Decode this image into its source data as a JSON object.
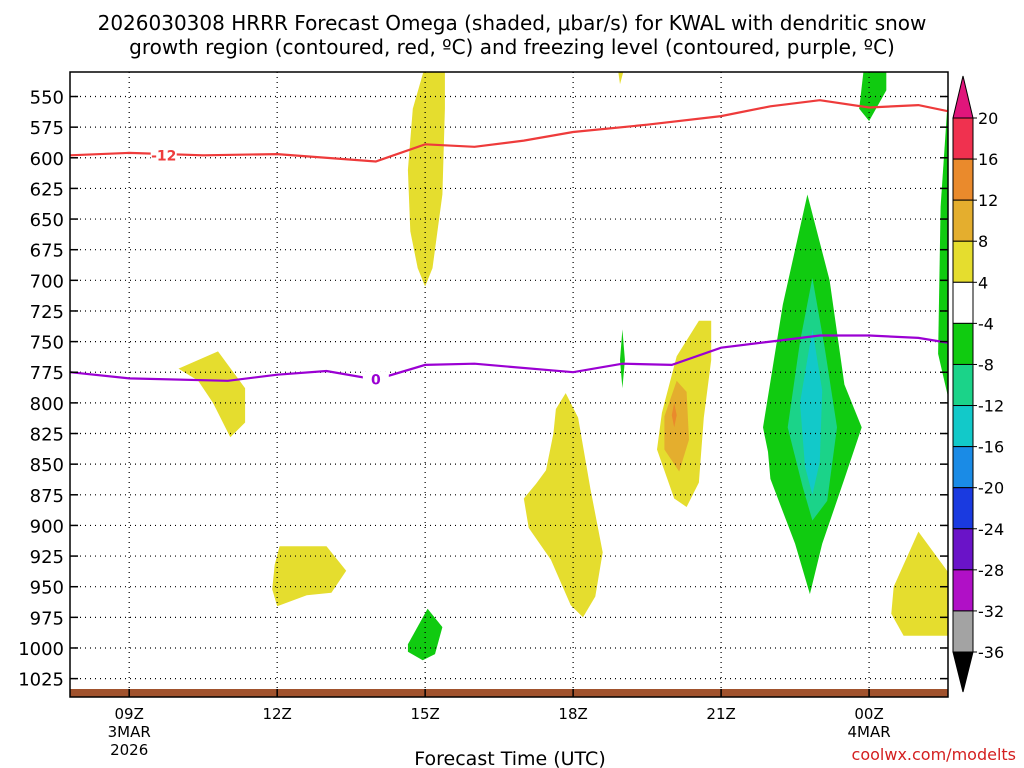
{
  "title_line1": "2026030308 HRRR Forecast Omega (shaded, μbar/s) for KWAL with dendritic snow",
  "title_line2": "growth region (contoured, red, ºC) and freezing level (contoured, purple, ºC)",
  "xlabel": "Forecast Time (UTC)",
  "credit": "coolwx.com/modelts",
  "colors": {
    "background": "#ffffff",
    "ground": "#a0522d",
    "red_contour": "#ee3b3b",
    "purple_contour": "#9b00d3",
    "grid": "#000000"
  },
  "chart_data": {
    "type": "time-height contour",
    "x_axis": {
      "units": "hours since 03MAR2026 09Z",
      "range": [
        -1.2,
        16.6
      ],
      "ticks": [
        {
          "hour": 0,
          "label": "09Z",
          "sub1": "3MAR",
          "sub2": "2026"
        },
        {
          "hour": 3,
          "label": "12Z",
          "sub1": "",
          "sub2": ""
        },
        {
          "hour": 6,
          "label": "15Z",
          "sub1": "",
          "sub2": ""
        },
        {
          "hour": 9,
          "label": "18Z",
          "sub1": "",
          "sub2": ""
        },
        {
          "hour": 12,
          "label": "21Z",
          "sub1": "",
          "sub2": ""
        },
        {
          "hour": 15,
          "label": "00Z",
          "sub1": "4MAR",
          "sub2": ""
        }
      ]
    },
    "y_axis": {
      "units": "hPa",
      "range": [
        530,
        1040
      ],
      "ticks": [
        550,
        575,
        600,
        625,
        650,
        675,
        700,
        725,
        750,
        775,
        800,
        825,
        850,
        875,
        900,
        925,
        950,
        975,
        1000,
        1025
      ]
    },
    "colorbar": {
      "title": "Omega (μbar/s)",
      "ticks": [
        20,
        16,
        12,
        8,
        4,
        -4,
        -8,
        -12,
        -16,
        -20,
        -24,
        -28,
        -32,
        -36
      ],
      "bins": [
        {
          "lo": 16,
          "hi": 20,
          "color": "#f0314f"
        },
        {
          "lo": 12,
          "hi": 16,
          "color": "#ea8a2c"
        },
        {
          "lo": 8,
          "hi": 12,
          "color": "#e4ae2e"
        },
        {
          "lo": 4,
          "hi": 8,
          "color": "#e5dd2e"
        },
        {
          "lo": -4,
          "hi": 4,
          "color": "#ffffff"
        },
        {
          "lo": -8,
          "hi": -4,
          "color": "#10cb10"
        },
        {
          "lo": -12,
          "hi": -8,
          "color": "#1bd389"
        },
        {
          "lo": -16,
          "hi": -12,
          "color": "#12c9c9"
        },
        {
          "lo": -20,
          "hi": -16,
          "color": "#1a8be6"
        },
        {
          "lo": -24,
          "hi": -20,
          "color": "#1a3ae0"
        },
        {
          "lo": -28,
          "hi": -24,
          "color": "#6a13c8"
        },
        {
          "lo": -32,
          "hi": -28,
          "color": "#b010c6"
        },
        {
          "lo": -36,
          "hi": -32,
          "color": "#a3a3a3"
        }
      ],
      "top_cap_color": "#e0157b",
      "bottom_cap_color": "#000000"
    },
    "red_contour": {
      "label": "-12",
      "label_point": [
        0.7,
        598
      ],
      "points": [
        [
          -1.2,
          598
        ],
        [
          0.0,
          596
        ],
        [
          1.5,
          598
        ],
        [
          3.0,
          597
        ],
        [
          5.0,
          603
        ],
        [
          6.0,
          589
        ],
        [
          7.0,
          591
        ],
        [
          8.0,
          586
        ],
        [
          9.0,
          579
        ],
        [
          10.5,
          573
        ],
        [
          12.0,
          566
        ],
        [
          13.0,
          558
        ],
        [
          14.0,
          553
        ],
        [
          15.0,
          559
        ],
        [
          16.0,
          557
        ],
        [
          16.6,
          562
        ]
      ]
    },
    "purple_contour": {
      "label": "0",
      "label_point": [
        5.0,
        781
      ],
      "points": [
        [
          -1.2,
          775
        ],
        [
          0.0,
          780
        ],
        [
          2.0,
          782
        ],
        [
          3.0,
          777
        ],
        [
          4.0,
          774
        ],
        [
          5.0,
          781
        ],
        [
          6.0,
          769
        ],
        [
          7.0,
          768
        ],
        [
          9.0,
          775
        ],
        [
          10.0,
          768
        ],
        [
          11.0,
          769
        ],
        [
          12.0,
          755
        ],
        [
          13.0,
          750
        ],
        [
          14.0,
          745
        ],
        [
          15.0,
          745
        ],
        [
          16.0,
          747
        ],
        [
          16.6,
          751
        ]
      ]
    },
    "omega_regions": [
      {
        "value": 4,
        "points": [
          [
            6.0,
            525
          ],
          [
            5.75,
            560
          ],
          [
            5.65,
            610
          ],
          [
            5.7,
            660
          ],
          [
            5.85,
            690
          ],
          [
            6.0,
            705
          ],
          [
            6.15,
            690
          ],
          [
            6.35,
            630
          ],
          [
            6.4,
            560
          ],
          [
            6.4,
            525
          ]
        ]
      },
      {
        "value": 4,
        "points": [
          [
            9.9,
            525
          ],
          [
            9.95,
            540
          ],
          [
            10.05,
            525
          ]
        ]
      },
      {
        "value": 4,
        "points": [
          [
            1.0,
            772
          ],
          [
            1.8,
            758
          ],
          [
            2.35,
            788
          ],
          [
            2.35,
            816
          ],
          [
            2.05,
            828
          ],
          [
            1.7,
            800
          ],
          [
            1.4,
            782
          ]
        ]
      },
      {
        "value": 4,
        "points": [
          [
            2.95,
            932
          ],
          [
            3.05,
            917
          ],
          [
            4.0,
            917
          ],
          [
            4.4,
            937
          ],
          [
            4.1,
            955
          ],
          [
            3.6,
            957
          ],
          [
            3.0,
            966
          ],
          [
            2.9,
            952
          ]
        ]
      },
      {
        "value": 4,
        "points": [
          [
            8.45,
            855
          ],
          [
            8.6,
            825
          ],
          [
            8.65,
            805
          ],
          [
            8.85,
            792
          ],
          [
            9.1,
            812
          ],
          [
            9.35,
            870
          ],
          [
            9.6,
            922
          ],
          [
            9.45,
            958
          ],
          [
            9.2,
            975
          ],
          [
            8.95,
            965
          ],
          [
            8.55,
            928
          ],
          [
            8.1,
            902
          ],
          [
            8.0,
            878
          ],
          [
            8.25,
            866
          ]
        ]
      },
      {
        "value": 4,
        "points": [
          [
            10.8,
            808
          ],
          [
            11.1,
            762
          ],
          [
            11.55,
            733
          ],
          [
            11.8,
            733
          ],
          [
            11.8,
            765
          ],
          [
            11.65,
            812
          ],
          [
            11.55,
            865
          ],
          [
            11.3,
            885
          ],
          [
            11.05,
            878
          ],
          [
            10.7,
            838
          ]
        ]
      },
      {
        "value": 8,
        "points": [
          [
            10.85,
            811
          ],
          [
            11.1,
            782
          ],
          [
            11.3,
            791
          ],
          [
            11.35,
            830
          ],
          [
            11.15,
            856
          ],
          [
            10.85,
            838
          ]
        ]
      },
      {
        "value": 12,
        "points": [
          [
            11.0,
            810
          ],
          [
            11.05,
            800
          ],
          [
            11.1,
            810
          ],
          [
            11.05,
            820
          ]
        ]
      },
      {
        "value": 4,
        "points": [
          [
            15.5,
            950
          ],
          [
            16.0,
            905
          ],
          [
            16.6,
            938
          ],
          [
            16.6,
            990
          ],
          [
            15.7,
            990
          ],
          [
            15.45,
            972
          ]
        ]
      },
      {
        "value": -4,
        "points": [
          [
            5.65,
            997
          ],
          [
            6.05,
            968
          ],
          [
            6.35,
            983
          ],
          [
            6.2,
            1005
          ],
          [
            5.95,
            1010
          ],
          [
            5.65,
            1003
          ]
        ]
      },
      {
        "value": -4,
        "points": [
          [
            9.95,
            765
          ],
          [
            10.0,
            740
          ],
          [
            10.05,
            765
          ],
          [
            10.0,
            788
          ]
        ]
      },
      {
        "value": -4,
        "points": [
          [
            14.9,
            525
          ],
          [
            14.8,
            560
          ],
          [
            15.0,
            570
          ],
          [
            15.35,
            545
          ],
          [
            15.35,
            525
          ]
        ]
      },
      {
        "value": -4,
        "points": [
          [
            16.6,
            550
          ],
          [
            16.45,
            640
          ],
          [
            16.4,
            760
          ],
          [
            16.6,
            795
          ]
        ]
      },
      {
        "value": -4,
        "points": [
          [
            12.85,
            820
          ],
          [
            13.25,
            720
          ],
          [
            13.75,
            630
          ],
          [
            14.2,
            700
          ],
          [
            14.5,
            785
          ],
          [
            14.85,
            820
          ],
          [
            14.5,
            862
          ],
          [
            14.05,
            915
          ],
          [
            13.8,
            956
          ],
          [
            13.5,
            915
          ],
          [
            13.0,
            862
          ],
          [
            12.95,
            840
          ]
        ]
      },
      {
        "value": -8,
        "points": [
          [
            13.35,
            820
          ],
          [
            13.6,
            750
          ],
          [
            13.85,
            698
          ],
          [
            14.1,
            755
          ],
          [
            14.35,
            820
          ],
          [
            14.15,
            880
          ],
          [
            13.85,
            896
          ],
          [
            13.65,
            868
          ]
        ]
      },
      {
        "value": -12,
        "points": [
          [
            13.6,
            800
          ],
          [
            13.85,
            740
          ],
          [
            14.05,
            790
          ],
          [
            14.0,
            848
          ],
          [
            13.85,
            875
          ],
          [
            13.7,
            852
          ]
        ]
      }
    ]
  }
}
